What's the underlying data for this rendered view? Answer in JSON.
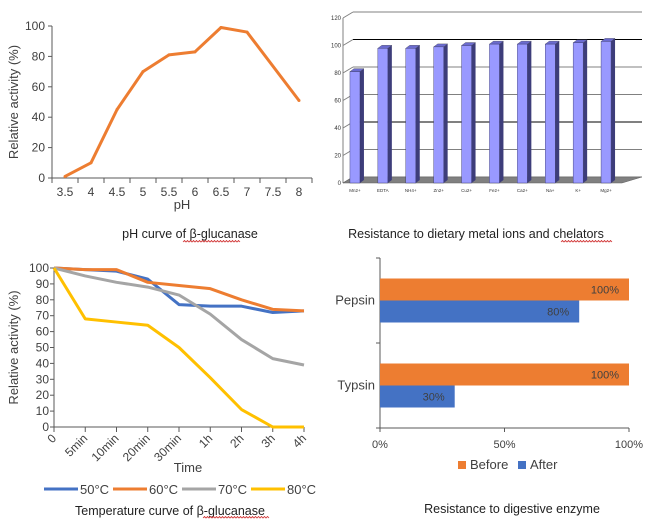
{
  "chart_data": [
    {
      "id": "ph",
      "type": "line",
      "title": "pH curve of β-glucanase",
      "xlabel": "pH",
      "ylabel": "Relative activity (%)",
      "categories": [
        "3.5",
        "4",
        "4.5",
        "5",
        "5.5",
        "6",
        "6.5",
        "7",
        "7.5",
        "8"
      ],
      "x": [
        3.5,
        4,
        4.5,
        5,
        5.5,
        6,
        6.5,
        7,
        7.5,
        8
      ],
      "series": [
        {
          "name": "Relative activity",
          "color": "#ed7d31",
          "values": [
            1,
            10,
            45,
            70,
            81,
            83,
            99,
            96,
            null,
            51
          ]
        }
      ],
      "yticks": [
        0,
        20,
        40,
        60,
        80,
        100
      ],
      "ylim": [
        0,
        100
      ],
      "grid": false,
      "legend": "none"
    },
    {
      "id": "metal",
      "type": "bar",
      "style": "3d-column",
      "title": "Resistance to dietary metal ions and chelators",
      "xlabel": "",
      "ylabel": "",
      "categories": [
        "Mn2+",
        "EDTA",
        "NH4+",
        "Zn2+",
        "Cu2+",
        "Fe2+",
        "Ca2+",
        "Na+",
        "K+",
        "Mg2+"
      ],
      "values": [
        81,
        98,
        98,
        99,
        100,
        101,
        101,
        101,
        102,
        103
      ],
      "yticks": [
        0,
        20,
        40,
        60,
        80,
        100,
        120
      ],
      "ylim": [
        0,
        120
      ],
      "grid": true,
      "color": "#9999ff",
      "side_color": "#3d3d7a",
      "legend": "none"
    },
    {
      "id": "temp",
      "type": "line",
      "title": "Temperature curve of β-glucanase",
      "xlabel": "Time",
      "ylabel": "Relative activity (%)",
      "categories": [
        "0",
        "5min",
        "10min",
        "20min",
        "30min",
        "1h",
        "2h",
        "3h",
        "4h"
      ],
      "series": [
        {
          "name": "50°C",
          "color": "#4472c4",
          "values": [
            100,
            99,
            98,
            93,
            77,
            76,
            76,
            72,
            73
          ]
        },
        {
          "name": "60°C",
          "color": "#ed7d31",
          "values": [
            100,
            99,
            99,
            91,
            89,
            87,
            80,
            74,
            73
          ]
        },
        {
          "name": "70°C",
          "color": "#a5a5a5",
          "values": [
            100,
            95,
            91,
            88,
            83,
            71,
            55,
            43,
            39
          ]
        },
        {
          "name": "80°C",
          "color": "#ffc000",
          "values": [
            100,
            68,
            66,
            64,
            50,
            31,
            11,
            0,
            0
          ]
        }
      ],
      "yticks": [
        0,
        10,
        20,
        30,
        40,
        50,
        60,
        70,
        80,
        90,
        100
      ],
      "ylim": [
        0,
        100
      ],
      "grid": false,
      "legend": "bottom"
    },
    {
      "id": "enzyme",
      "type": "bar",
      "orientation": "horizontal",
      "title": "Resistance to digestive enzyme",
      "categories": [
        "Pepsin",
        "Typsin"
      ],
      "series": [
        {
          "name": "Before",
          "color": "#ed7d31",
          "values": [
            100,
            100
          ],
          "labels": [
            "100%",
            "100%"
          ]
        },
        {
          "name": "After",
          "color": "#4472c4",
          "values": [
            80,
            30
          ],
          "labels": [
            "80%",
            "30%"
          ]
        }
      ],
      "xticks": [
        "0%",
        "50%",
        "100%"
      ],
      "xlim": [
        0,
        100
      ],
      "grid": false,
      "legend": "bottom"
    }
  ]
}
